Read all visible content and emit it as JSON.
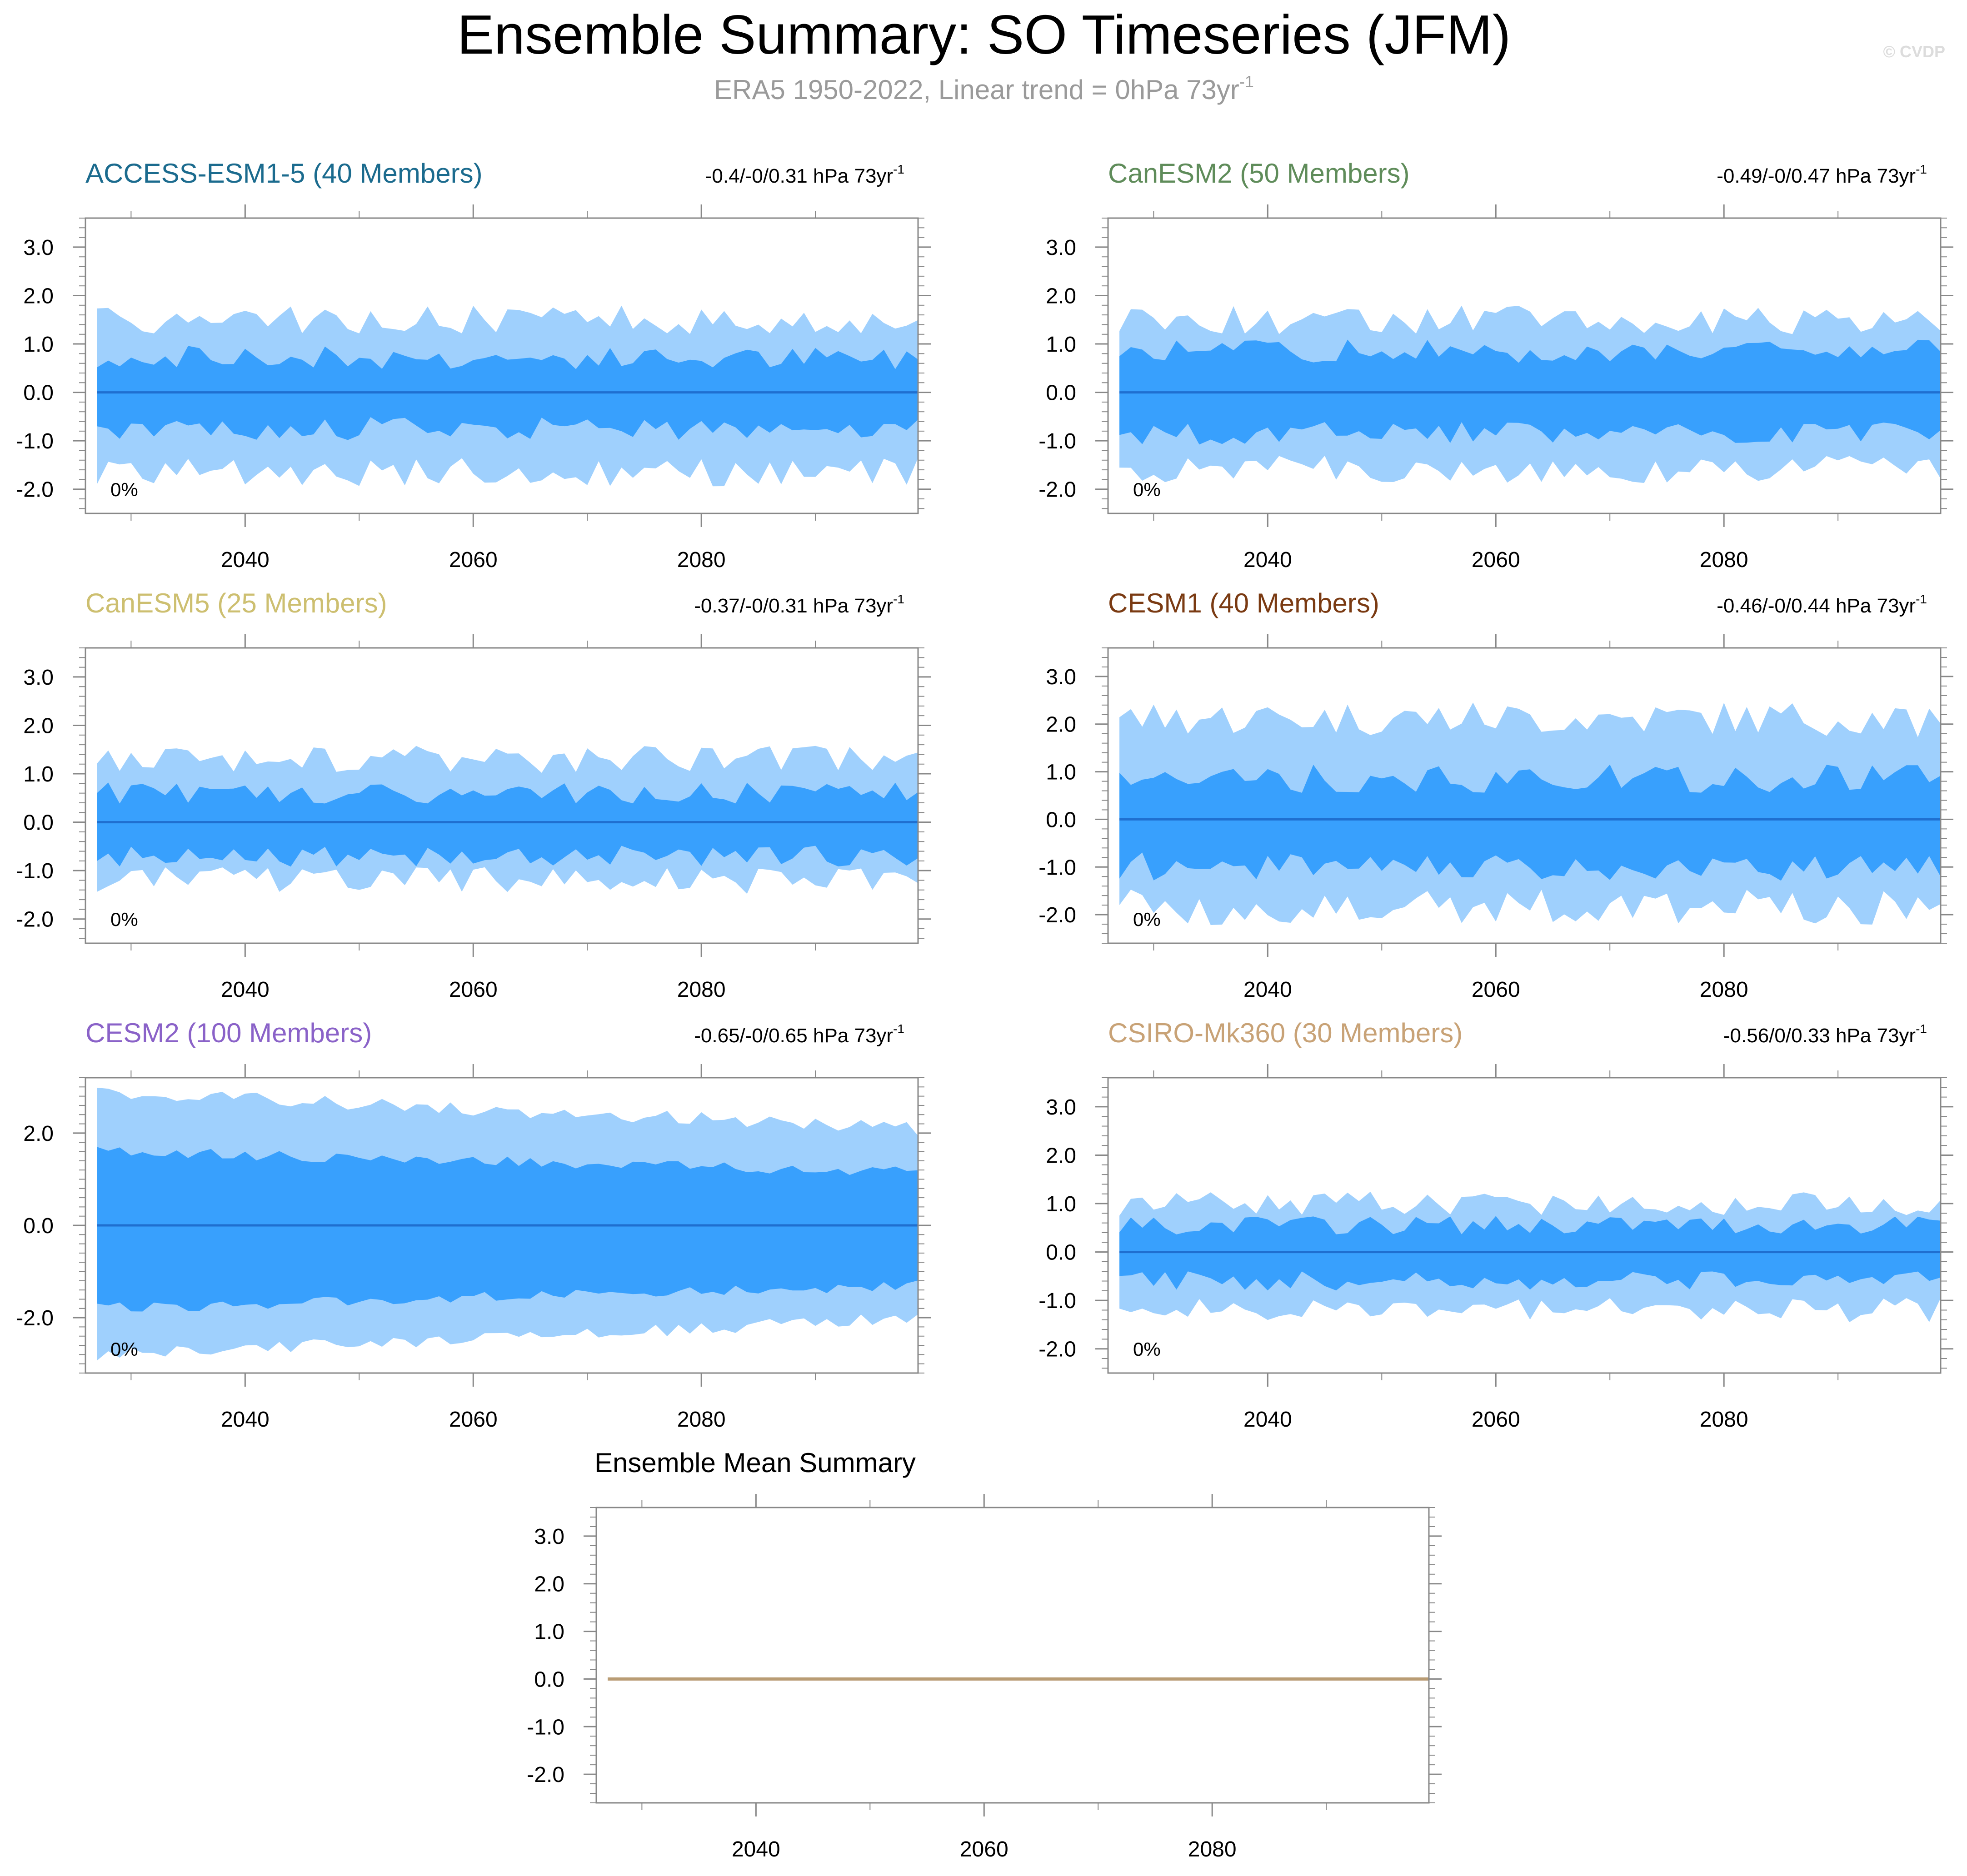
{
  "title": "Ensemble Summary: SO Timeseries (JFM)",
  "subtitle": {
    "main": "ERA5 1950-2022, Linear trend = 0hPa 73yr",
    "sup": "-1"
  },
  "watermark": "© CVDP",
  "colors": {
    "outer_band": "#9fd0fd",
    "inner_band": "#38a0fd",
    "mean_line": "#1f6fd0",
    "axis": "#888888",
    "ensemble_mean_line": "#b99c74"
  },
  "chart_data": [
    {
      "type": "area",
      "title": "ACCESS-ESM1-5 (40 Members)",
      "title_color": "#1b6b8e",
      "trend_label": "-0.4/-0/0.31 hPa 73yr",
      "trend_sup": "-1",
      "percent_label": "0%",
      "x_range": [
        2026,
        2099
      ],
      "ylim": [
        -2.5,
        3.6
      ],
      "yticks": [
        3.0,
        2.0,
        1.0,
        0.0,
        -1.0,
        -2.0
      ],
      "ytick_labels": [
        "3.0",
        "2.0",
        "1.0",
        "0.0",
        "-1.0",
        "-2.0"
      ],
      "xticks": [
        2040,
        2060,
        2080
      ],
      "xtick_labels": [
        "2040",
        "2060",
        "2080"
      ],
      "band_amplitude": {
        "outer_upper": 1.5,
        "outer_lower": 1.65,
        "inner_upper": 0.72,
        "inner_lower": 0.75,
        "noise": 0.3
      },
      "mean": 0.0
    },
    {
      "type": "area",
      "title": "CanESM2 (50 Members)",
      "title_color": "#5f8c5a",
      "trend_label": "-0.49/-0/0.47 hPa 73yr",
      "trend_sup": "-1",
      "percent_label": "0%",
      "x_range": [
        2026,
        2099
      ],
      "ylim": [
        -2.5,
        3.6
      ],
      "yticks": [
        3.0,
        2.0,
        1.0,
        0.0,
        -1.0,
        -2.0
      ],
      "ytick_labels": [
        "3.0",
        "2.0",
        "1.0",
        "0.0",
        "-1.0",
        "-2.0"
      ],
      "xticks": [
        2040,
        2060,
        2080
      ],
      "xtick_labels": [
        "2040",
        "2060",
        "2080"
      ],
      "band_amplitude": {
        "outer_upper": 1.5,
        "outer_lower": 1.6,
        "inner_upper": 0.85,
        "inner_lower": 0.85,
        "noise": 0.3
      },
      "mean": 0.0
    },
    {
      "type": "area",
      "title": "CanESM5 (25 Members)",
      "title_color": "#cdbf70",
      "trend_label": "-0.37/-0/0.31 hPa 73yr",
      "trend_sup": "-1",
      "percent_label": "0%",
      "x_range": [
        2026,
        2099
      ],
      "ylim": [
        -2.5,
        3.6
      ],
      "yticks": [
        3.0,
        2.0,
        1.0,
        0.0,
        -1.0,
        -2.0
      ],
      "ytick_labels": [
        "3.0",
        "2.0",
        "1.0",
        "0.0",
        "-1.0",
        "-2.0"
      ],
      "xticks": [
        2040,
        2060,
        2080
      ],
      "xtick_labels": [
        "2040",
        "2060",
        "2080"
      ],
      "band_amplitude": {
        "outer_upper": 1.3,
        "outer_lower": 1.2,
        "inner_upper": 0.6,
        "inner_lower": 0.7,
        "noise": 0.28
      },
      "mean": 0.0
    },
    {
      "type": "area",
      "title": "CESM1 (40 Members)",
      "title_color": "#7a3a12",
      "trend_label": "-0.46/-0/0.44 hPa 73yr",
      "trend_sup": "-1",
      "percent_label": "0%",
      "x_range": [
        2026,
        2099
      ],
      "ylim": [
        -2.6,
        3.6
      ],
      "yticks": [
        3.0,
        2.0,
        1.0,
        0.0,
        -1.0,
        -2.0
      ],
      "ytick_labels": [
        "3.0",
        "2.0",
        "1.0",
        "0.0",
        "-1.0",
        "-2.0"
      ],
      "xticks": [
        2040,
        2060,
        2080
      ],
      "xtick_labels": [
        "2040",
        "2060",
        "2080"
      ],
      "band_amplitude": {
        "outer_upper": 2.1,
        "outer_lower": 1.85,
        "inner_upper": 0.85,
        "inner_lower": 1.0,
        "noise": 0.38
      },
      "mean": 0.0
    },
    {
      "type": "area",
      "title": "CESM2 (100 Members)",
      "title_color": "#8a62c8",
      "trend_label": "-0.65/-0/0.65 hPa 73yr",
      "trend_sup": "-1",
      "percent_label": "0%",
      "x_range": [
        2026,
        2099
      ],
      "ylim": [
        -3.2,
        3.2
      ],
      "yticks": [
        2.0,
        0.0,
        -2.0
      ],
      "ytick_labels": [
        "2.0",
        "0.0",
        "-2.0"
      ],
      "xticks": [
        2040,
        2060,
        2080
      ],
      "xtick_labels": [
        "2040",
        "2060",
        "2080"
      ],
      "band_amplitude": {
        "outer_upper": 2.9,
        "outer_lower": 2.8,
        "inner_upper": 1.6,
        "inner_lower": 1.8,
        "noise": 0.15,
        "trend": -0.8
      },
      "mean": 0.0
    },
    {
      "type": "area",
      "title": "CSIRO-Mk360 (30 Members)",
      "title_color": "#c8a276",
      "trend_label": "-0.56/0/0.33 hPa 73yr",
      "trend_sup": "-1",
      "percent_label": "0%",
      "x_range": [
        2026,
        2099
      ],
      "ylim": [
        -2.5,
        3.6
      ],
      "yticks": [
        3.0,
        2.0,
        1.0,
        0.0,
        -1.0,
        -2.0
      ],
      "ytick_labels": [
        "3.0",
        "2.0",
        "1.0",
        "0.0",
        "-1.0",
        "-2.0"
      ],
      "xticks": [
        2040,
        2060,
        2080
      ],
      "xtick_labels": [
        "2040",
        "2060",
        "2080"
      ],
      "band_amplitude": {
        "outer_upper": 1.0,
        "outer_lower": 1.2,
        "inner_upper": 0.55,
        "inner_lower": 0.6,
        "noise": 0.25
      },
      "mean": 0.0
    },
    {
      "type": "line",
      "title": "Ensemble Mean Summary",
      "title_color": "#000000",
      "x_range": [
        2026,
        2099
      ],
      "ylim": [
        -2.6,
        3.6
      ],
      "yticks": [
        3.0,
        2.0,
        1.0,
        0.0,
        -1.0,
        -2.0
      ],
      "ytick_labels": [
        "3.0",
        "2.0",
        "1.0",
        "0.0",
        "-1.0",
        "-2.0"
      ],
      "xticks": [
        2040,
        2060,
        2080
      ],
      "xtick_labels": [
        "2040",
        "2060",
        "2080"
      ],
      "series": [
        {
          "name": "Ensemble mean",
          "x": [
            2027,
            2099
          ],
          "values": [
            0.0,
            0.0
          ]
        }
      ]
    }
  ]
}
